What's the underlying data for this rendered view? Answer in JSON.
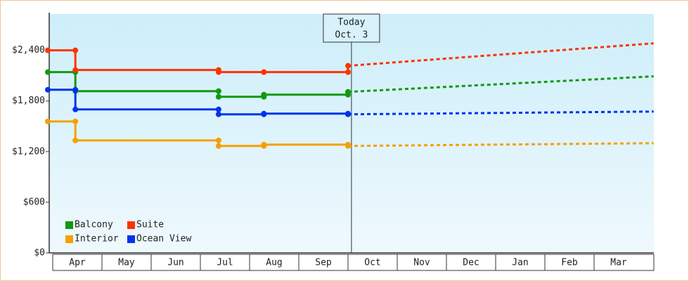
{
  "chart_data": {
    "type": "step-line",
    "xticks": [
      {
        "value": 0,
        "label": "Apr"
      },
      {
        "value": 1,
        "label": "May"
      },
      {
        "value": 2,
        "label": "Jun"
      },
      {
        "value": 3,
        "label": "Jul"
      },
      {
        "value": 4,
        "label": "Aug"
      },
      {
        "value": 5,
        "label": "Sep"
      },
      {
        "value": 6,
        "label": "Oct"
      },
      {
        "value": 7,
        "label": "Nov"
      },
      {
        "value": 8,
        "label": "Dec"
      },
      {
        "value": 9,
        "label": "Jan"
      },
      {
        "value": 10,
        "label": "Feb"
      },
      {
        "value": 11,
        "label": "Mar"
      }
    ],
    "xlim": [
      -0.1,
      12.21
    ],
    "ylim": [
      0,
      2830
    ],
    "yticks": [
      {
        "value": 0,
        "label": "$0"
      },
      {
        "value": 600,
        "label": "$600"
      },
      {
        "value": 1200,
        "label": "$1,200"
      },
      {
        "value": 1800,
        "label": "$1,800"
      },
      {
        "value": 2400,
        "label": "$2,400"
      }
    ],
    "annotation": {
      "lines": [
        "Today",
        "Oct. 3"
      ],
      "x": 6.07
    },
    "series": [
      {
        "name": "Balcony",
        "color": "#119911",
        "x": [
          -0.1,
          0.46,
          3.37,
          4.29,
          6.0
        ],
        "values": [
          2142,
          1917,
          1850,
          1875,
          1908
        ],
        "forecast_x": [
          6.0,
          12.21
        ],
        "forecast_values": [
          1908,
          2092
        ]
      },
      {
        "name": "Suite",
        "color": "#ff3300",
        "x": [
          -0.1,
          0.46,
          3.37,
          4.29,
          6.0
        ],
        "values": [
          2400,
          2167,
          2142,
          2142,
          2217
        ],
        "forecast_x": [
          6.0,
          12.21
        ],
        "forecast_values": [
          2217,
          2483
        ]
      },
      {
        "name": "Interior",
        "color": "#f5a000",
        "x": [
          -0.1,
          0.46,
          3.37,
          4.29,
          6.0
        ],
        "values": [
          1558,
          1333,
          1267,
          1283,
          1267
        ],
        "forecast_x": [
          6.0,
          12.21
        ],
        "forecast_values": [
          1267,
          1300
        ]
      },
      {
        "name": "Ocean View",
        "color": "#0033ee",
        "x": [
          -0.1,
          0.46,
          3.37,
          4.29,
          6.0
        ],
        "values": [
          1933,
          1700,
          1642,
          1650,
          1642
        ],
        "forecast_x": [
          6.0,
          12.21
        ],
        "forecast_values": [
          1642,
          1675
        ]
      }
    ]
  }
}
